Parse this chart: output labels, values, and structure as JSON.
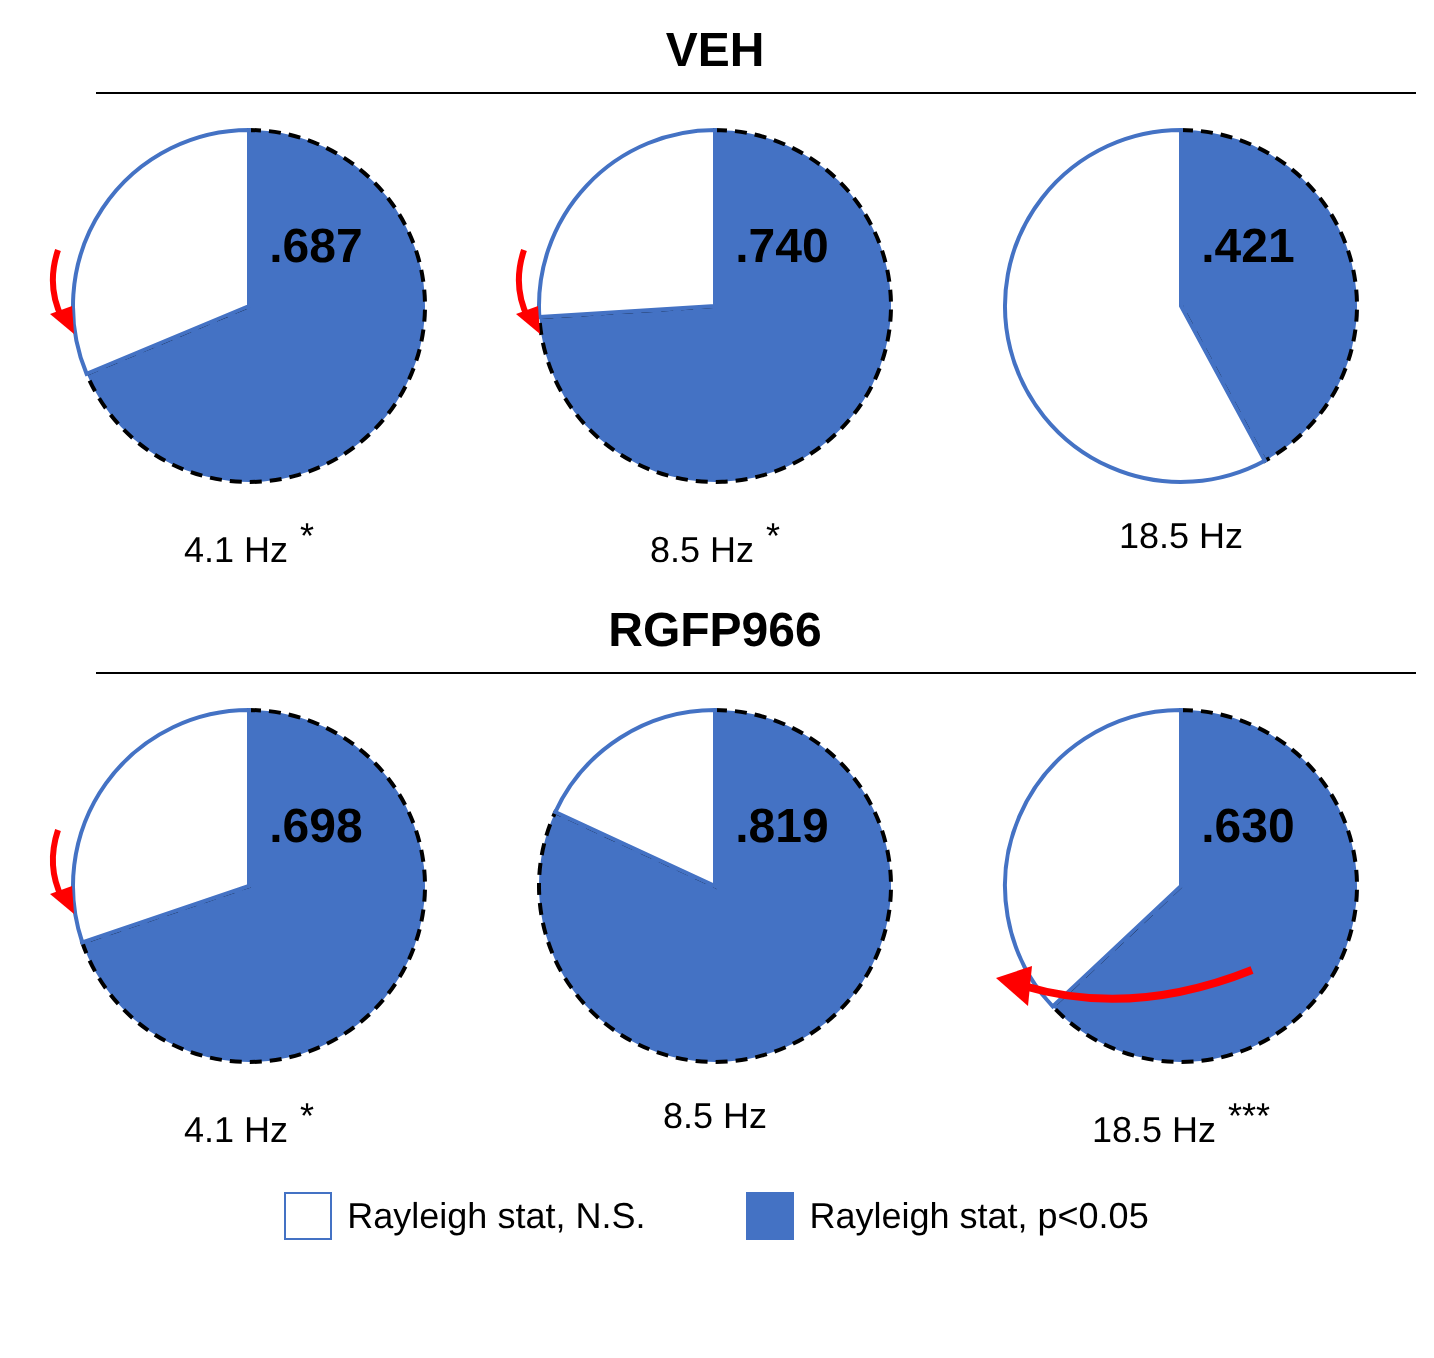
{
  "chart_data": [
    {
      "type": "pie",
      "categories": [
        "Rayleigh stat, p<0.05",
        "Rayleigh stat, N.S."
      ],
      "values": [
        0.687,
        0.313
      ],
      "value_labels": [
        ".687",
        null
      ],
      "colors": [
        "#4472c4",
        "#ffffff"
      ],
      "xlabel": "4.1 Hz",
      "annotations": [
        "*"
      ],
      "legend": "bottom"
    },
    {
      "type": "pie",
      "title": "VEH",
      "categories": [
        null,
        null
      ],
      "values": [
        0.74,
        0.26
      ],
      "value_labels": [
        ".740",
        null
      ],
      "colors": [
        "#4472c4",
        "#ffffff"
      ],
      "xlabel": "8.5 Hz",
      "annotations": [
        "*"
      ]
    },
    {
      "type": "pie",
      "categories": [
        null,
        null
      ],
      "values": [
        0.421,
        0.579
      ],
      "value_labels": [
        ".421",
        null
      ],
      "colors": [
        "#4472c4",
        "#ffffff"
      ],
      "xlabel": "18.5 Hz"
    },
    {
      "type": "pie",
      "categories": [
        null,
        null
      ],
      "values": [
        0.698,
        0.302
      ],
      "value_labels": [
        ".698",
        null
      ],
      "colors": [
        "#4472c4",
        "#ffffff"
      ],
      "xlabel": "4.1 Hz",
      "annotations": [
        "*"
      ]
    },
    {
      "type": "pie",
      "title": "RGFP966",
      "categories": [
        null,
        null
      ],
      "values": [
        0.819,
        0.181
      ],
      "value_labels": [
        ".819",
        null
      ],
      "colors": [
        "#4472c4",
        "#ffffff"
      ],
      "xlabel": "8.5 Hz"
    },
    {
      "type": "pie",
      "categories": [
        null,
        null
      ],
      "values": [
        0.63,
        0.37
      ],
      "value_labels": [
        ".630",
        null
      ],
      "colors": [
        "#4472c4",
        "#ffffff"
      ],
      "xlabel": "18.5 Hz",
      "annotations": [
        "***"
      ]
    }
  ]
}
